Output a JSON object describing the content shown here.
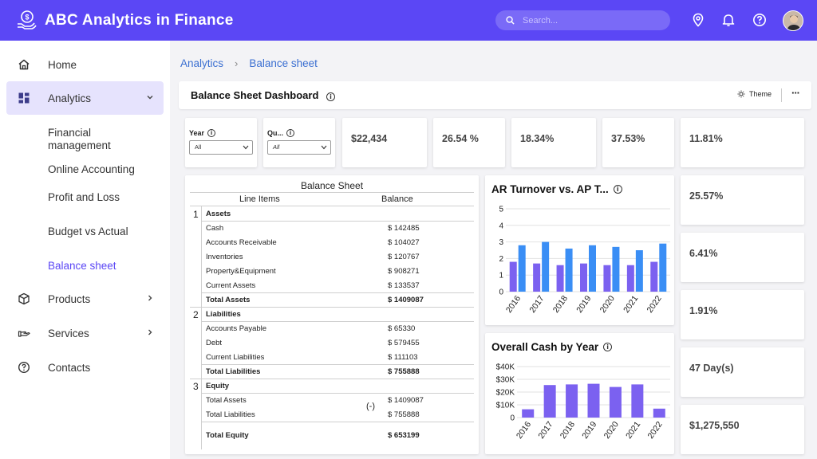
{
  "header": {
    "app_title": "ABC Analytics in Finance",
    "search_placeholder": "Search..."
  },
  "sidebar": {
    "items": [
      {
        "label": "Home",
        "icon": "home-icon"
      },
      {
        "label": "Analytics",
        "icon": "dashboard-icon"
      },
      {
        "label": "Products",
        "icon": "box-icon"
      },
      {
        "label": "Services",
        "icon": "hand-icon"
      },
      {
        "label": "Contacts",
        "icon": "help-icon"
      }
    ],
    "sub_items": [
      "Financial management",
      "Online Accounting",
      "Profit and Loss",
      "Budget vs Actual",
      "Balance sheet"
    ]
  },
  "breadcrumb": {
    "root": "Analytics",
    "separator": "›",
    "current": "Balance sheet"
  },
  "dashboard": {
    "title": "Balance Sheet Dashboard",
    "theme_label": "Theme",
    "more_label": "···"
  },
  "filters": [
    {
      "label": "Year",
      "value": "All"
    },
    {
      "label": "Qu...",
      "value": "All"
    }
  ],
  "kpis_top": [
    "$22,434",
    "26.54 %",
    "18.34%",
    "37.53%",
    "11.81%"
  ],
  "kpis_side": [
    "25.57%",
    "6.41%",
    "1.91%",
    "47 Day(s)",
    "$1,275,550"
  ],
  "balance_sheet": {
    "title": "Balance Sheet",
    "col_items": "Line Items",
    "col_balance": "Balance",
    "sections": [
      {
        "num": "1",
        "name": "Assets",
        "rows": [
          {
            "item": "Cash",
            "balance": "$ 142485"
          },
          {
            "item": "Accounts Receivable",
            "balance": "$ 104027"
          },
          {
            "item": "Inventories",
            "balance": "$ 120767"
          },
          {
            "item": "Property&Equipment",
            "balance": "$ 908271"
          },
          {
            "item": "Current Assets",
            "balance": "$ 133537"
          }
        ],
        "total_label": "Total Assets",
        "total": "$ 1409087"
      },
      {
        "num": "2",
        "name": "Liabilities",
        "rows": [
          {
            "item": "Accounts Payable",
            "balance": "$ 65330"
          },
          {
            "item": "Debt",
            "balance": "$ 579455"
          },
          {
            "item": "Current Liabilities",
            "balance": "$ 111103"
          }
        ],
        "total_label": "Total Liabilities",
        "total": "$ 755888"
      },
      {
        "num": "3",
        "name": "Equity",
        "rows": [
          {
            "item": "Total Assets",
            "balance": "$ 1409087"
          },
          {
            "item": "Total Liabilities",
            "balance": "$ 755888"
          }
        ],
        "minus_label": "(-)",
        "total_label": "Total Equity",
        "total": "$ 653199"
      }
    ]
  },
  "chart_data": [
    {
      "type": "bar",
      "title": "AR Turnover vs. AP T...",
      "categories": [
        "2016",
        "2017",
        "2018",
        "2019",
        "2020",
        "2021",
        "2022"
      ],
      "series": [
        {
          "values": [
            1.8,
            1.7,
            1.6,
            1.7,
            1.6,
            1.6,
            1.8
          ],
          "color": "#7b61f0"
        },
        {
          "values": [
            2.8,
            3.0,
            2.6,
            2.8,
            2.7,
            2.5,
            2.9
          ],
          "color": "#3a8ef5"
        }
      ],
      "yticks": [
        0,
        1,
        2,
        3,
        4,
        5
      ],
      "ylim": [
        0,
        5
      ],
      "grid": true
    },
    {
      "type": "bar",
      "title": "Overall Cash by Year",
      "categories": [
        "2016",
        "2017",
        "2018",
        "2019",
        "2020",
        "2021",
        "2022"
      ],
      "series": [
        {
          "values": [
            6500,
            25500,
            26000,
            26500,
            24000,
            26000,
            7000
          ],
          "color": "#7b61f0"
        }
      ],
      "yticks": [
        "0",
        "$10K",
        "$20K",
        "$30K",
        "$40K"
      ],
      "ylim": [
        0,
        40000
      ],
      "grid": true
    }
  ],
  "colors": {
    "accent": "#5b47f5",
    "link": "#3b6fd1",
    "bar_purple": "#7b61f0",
    "bar_blue": "#3a8ef5"
  }
}
